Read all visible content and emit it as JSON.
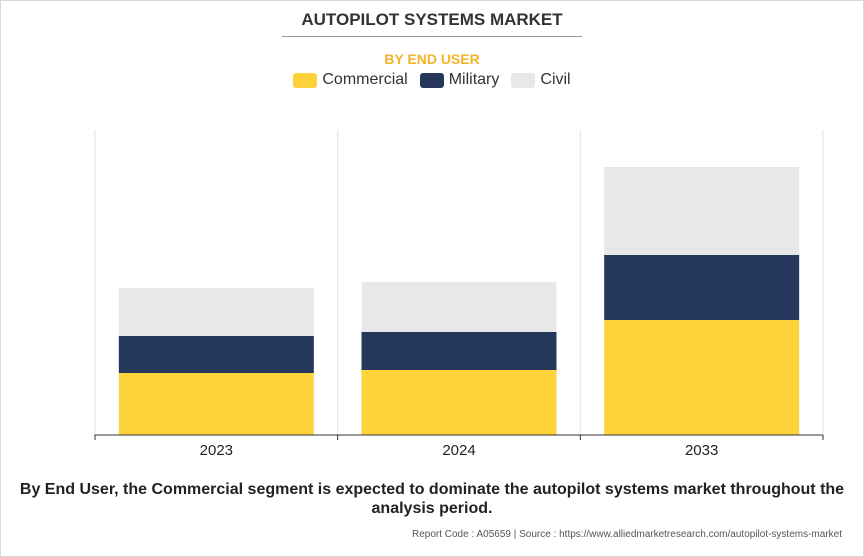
{
  "header": {
    "title": "AUTOPILOT SYSTEMS MARKET",
    "subtitle": "BY END USER"
  },
  "legend": [
    {
      "label": "Commercial",
      "color": "#fdd23b"
    },
    {
      "label": "Military",
      "color": "#25375a"
    },
    {
      "label": "Civil",
      "color": "#e8e8e8"
    }
  ],
  "chart_data": {
    "type": "bar",
    "stacked": true,
    "title": "AUTOPILOT SYSTEMS MARKET",
    "subtitle": "BY END USER",
    "categories": [
      "2023",
      "2024",
      "2033"
    ],
    "series": [
      {
        "name": "Commercial",
        "color": "#fdd23b",
        "values": [
          62,
          65,
          115
        ]
      },
      {
        "name": "Military",
        "color": "#25375a",
        "values": [
          37,
          38,
          65
        ]
      },
      {
        "name": "Civil",
        "color": "#e8e8e8",
        "values": [
          48,
          50,
          88
        ]
      }
    ],
    "xlabel": "",
    "ylabel": "",
    "ylim": [
      0,
      305
    ],
    "grid": false,
    "legend_position": "top-center"
  },
  "footer": {
    "summary": "By End User, the Commercial segment is expected to dominate the autopilot systems market throughout the analysis period.",
    "source": "Report Code : A05659  |  Source : https://www.alliedmarketresearch.com/autopilot-systems-market"
  }
}
